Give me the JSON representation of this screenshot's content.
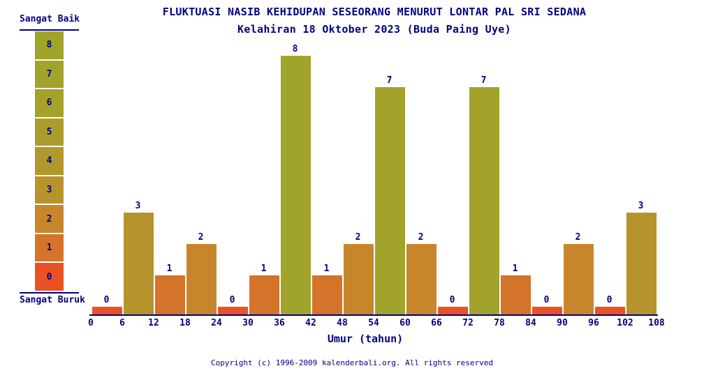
{
  "title": {
    "line1": "FLUKTUASI NASIB KEHIDUPAN SESEORANG MENURUT LONTAR PAL SRI SEDANA",
    "line2": "Kelahiran 18 Oktober 2023 (Buda Paing Uye)"
  },
  "legend": {
    "top_label": "Sangat Baik",
    "bottom_label": "Sangat Buruk",
    "levels": [
      {
        "value": 8,
        "color": "#A0A42B"
      },
      {
        "value": 7,
        "color": "#A2A32B"
      },
      {
        "value": 6,
        "color": "#A5A12B"
      },
      {
        "value": 5,
        "color": "#AA9D2B"
      },
      {
        "value": 4,
        "color": "#B0982B"
      },
      {
        "value": 3,
        "color": "#B7932B"
      },
      {
        "value": 2,
        "color": "#C8862C"
      },
      {
        "value": 1,
        "color": "#D4732A"
      },
      {
        "value": 0,
        "color": "#EA5226"
      }
    ]
  },
  "chart_data": {
    "type": "bar",
    "title": "FLUKTUASI NASIB KEHIDUPAN SESEORANG MENURUT LONTAR PAL SRI SEDANA",
    "subtitle": "Kelahiran 18 Oktober 2023 (Buda Paing Uye)",
    "xlabel": "Umur (tahun)",
    "x_tick_labels": [
      "0",
      "6",
      "12",
      "18",
      "24",
      "30",
      "36",
      "42",
      "48",
      "54",
      "60",
      "66",
      "72",
      "78",
      "84",
      "90",
      "96",
      "102",
      "108"
    ],
    "age_ranges": [
      "0-6",
      "6-12",
      "12-18",
      "18-24",
      "24-30",
      "30-36",
      "36-42",
      "42-48",
      "48-54",
      "54-60",
      "60-66",
      "66-72",
      "72-78",
      "78-84",
      "84-90",
      "90-96",
      "96-102",
      "102-108"
    ],
    "values": [
      0,
      3,
      1,
      2,
      0,
      1,
      8,
      1,
      2,
      7,
      2,
      0,
      7,
      1,
      0,
      2,
      0,
      3
    ],
    "ylim": [
      0,
      8
    ],
    "grid": false,
    "legend_position": "left",
    "value_labels_shown": true,
    "bar_colors_by_value": {
      "0": "#EA5226",
      "1": "#D4732A",
      "2": "#C8862C",
      "3": "#B7932B",
      "4": "#B0982B",
      "5": "#AA9D2B",
      "6": "#A5A12B",
      "7": "#A2A32B",
      "8": "#A0A42B"
    }
  },
  "footer": {
    "copyright": "Copyright (c) 1996-2009 kalenderbali.org. All rights reserved"
  },
  "colors": {
    "text": "#000080",
    "background": "#FFFFFF"
  }
}
